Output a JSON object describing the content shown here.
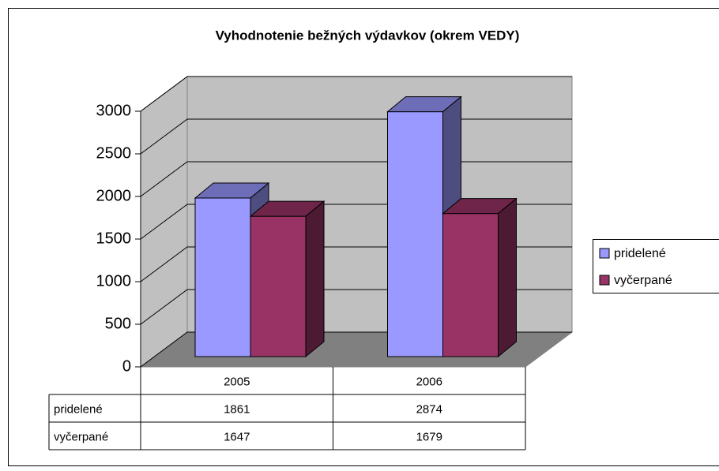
{
  "chart_data": {
    "type": "bar3d",
    "title": "Vyhodnotenie bežných výdavkov (okrem VEDY)",
    "categories": [
      "2005",
      "2006"
    ],
    "series": [
      {
        "name": "pridelené",
        "color": "#9999ff",
        "values": [
          1861,
          2874
        ]
      },
      {
        "name": "vyčerpané",
        "color": "#993366",
        "values": [
          1647,
          1679
        ]
      }
    ],
    "ylim": [
      0,
      3000
    ],
    "yticks": [
      0,
      500,
      1000,
      1500,
      2000,
      2500,
      3000
    ],
    "grid": true,
    "legend": "right",
    "data_table": true
  }
}
